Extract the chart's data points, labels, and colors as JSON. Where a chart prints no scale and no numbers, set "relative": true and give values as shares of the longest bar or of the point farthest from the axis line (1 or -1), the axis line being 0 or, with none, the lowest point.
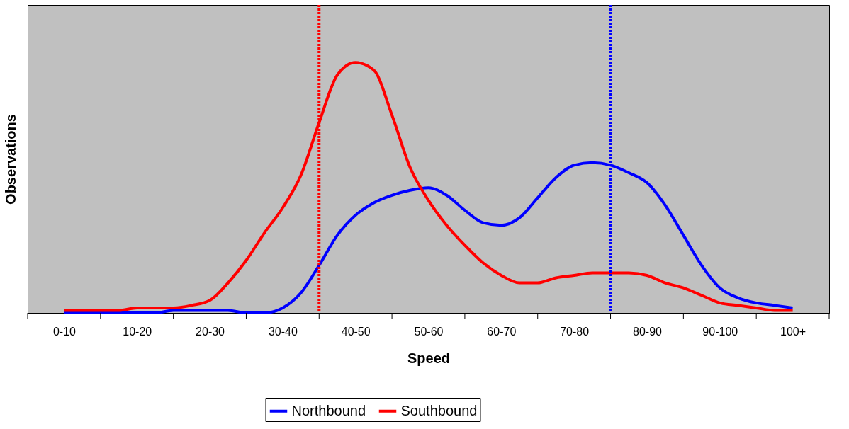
{
  "chart_data": {
    "type": "line",
    "xlabel": "Speed",
    "ylabel": "Observations",
    "relative": true,
    "categories": [
      "0-10",
      null,
      null,
      null,
      "10-20",
      null,
      null,
      null,
      "20-30",
      null,
      null,
      null,
      "30-40",
      null,
      null,
      null,
      "40-50",
      null,
      null,
      null,
      "50-60",
      null,
      null,
      null,
      "60-70",
      null,
      null,
      null,
      "70-80",
      null,
      null,
      null,
      "80-90",
      null,
      null,
      null,
      "90-100",
      null,
      null,
      null,
      "100+"
    ],
    "series": [
      {
        "name": "Northbound",
        "color": "#0000ff",
        "values": [
          0,
          0,
          0,
          0,
          0,
          0,
          0.01,
          0.01,
          0.01,
          0.01,
          0,
          0,
          0.02,
          0.08,
          0.19,
          0.31,
          0.39,
          0.44,
          0.47,
          0.49,
          0.5,
          0.47,
          0.41,
          0.36,
          0.35,
          0.38,
          0.46,
          0.54,
          0.59,
          0.6,
          0.59,
          0.56,
          0.52,
          0.43,
          0.31,
          0.19,
          0.1,
          0.06,
          0.04,
          0.03,
          0.02
        ]
      },
      {
        "name": "Southbound",
        "color": "#ff0000",
        "values": [
          0.01,
          0.01,
          0.01,
          0.01,
          0.02,
          0.02,
          0.02,
          0.03,
          0.05,
          0.12,
          0.21,
          0.32,
          0.42,
          0.55,
          0.76,
          0.95,
          1,
          0.97,
          0.79,
          0.58,
          0.45,
          0.35,
          0.27,
          0.2,
          0.15,
          0.12,
          0.12,
          0.14,
          0.15,
          0.16,
          0.16,
          0.16,
          0.15,
          0.12,
          0.1,
          0.07,
          0.04,
          0.03,
          0.02,
          0.01,
          0.01
        ]
      }
    ],
    "legend": "bottom",
    "grid": false,
    "line_style": "solid",
    "marker": "none"
  }
}
